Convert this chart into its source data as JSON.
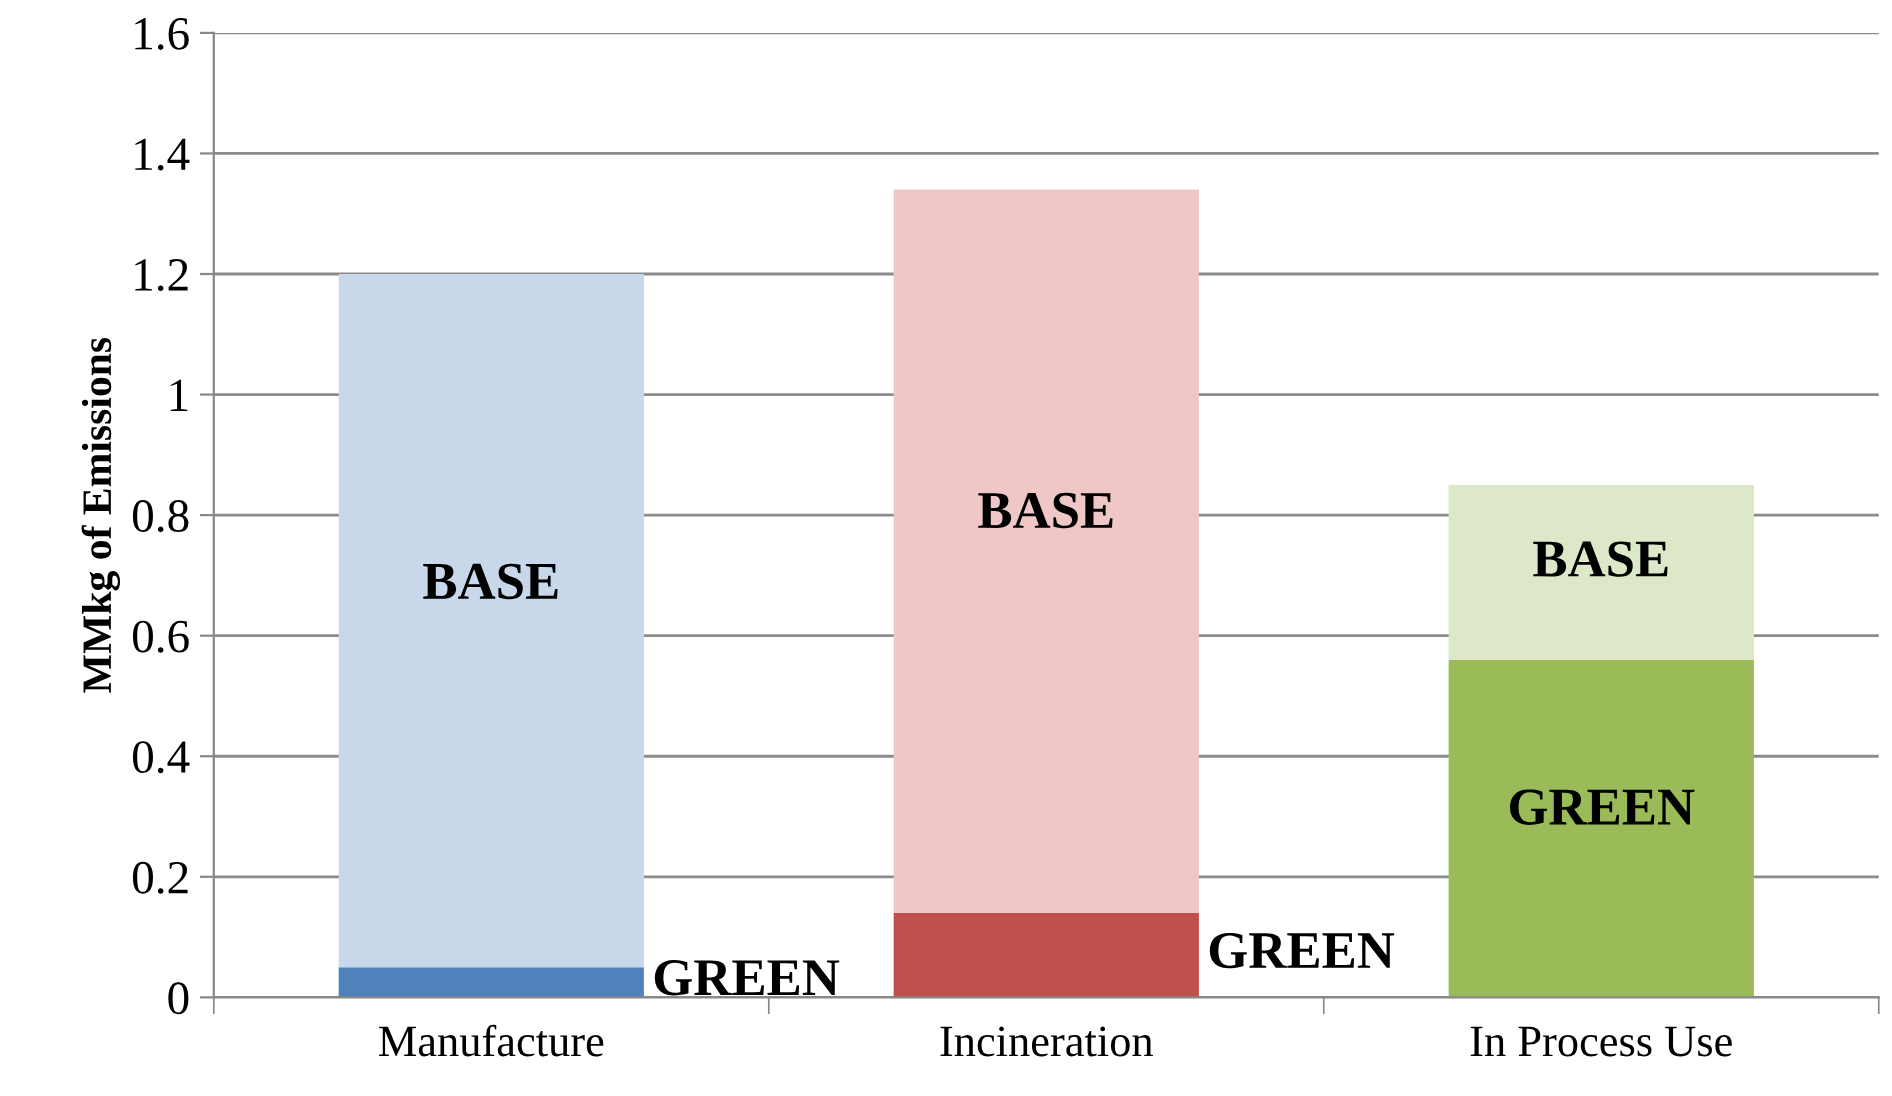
{
  "chart_data": {
    "type": "bar",
    "stacked": true,
    "ylabel": "MMkg of Emissions",
    "categories": [
      "Manufacture",
      "Incineration",
      "In Process Use"
    ],
    "series": [
      {
        "name": "GREEN",
        "colors": [
          "#4f81bd",
          "#c0504d",
          "#9bbb59"
        ],
        "values": [
          0.05,
          0.14,
          0.56
        ]
      },
      {
        "name": "BASE",
        "colors": [
          "#c9d7ea",
          "#efc7c6",
          "#dde8c8"
        ],
        "values": [
          1.15,
          1.2,
          0.29
        ]
      }
    ],
    "ylim": [
      0,
      1.6
    ],
    "yticks": [
      0,
      0.2,
      0.4,
      0.6,
      0.8,
      1,
      1.2,
      1.4,
      1.6
    ],
    "grid": "y",
    "legend": false
  }
}
